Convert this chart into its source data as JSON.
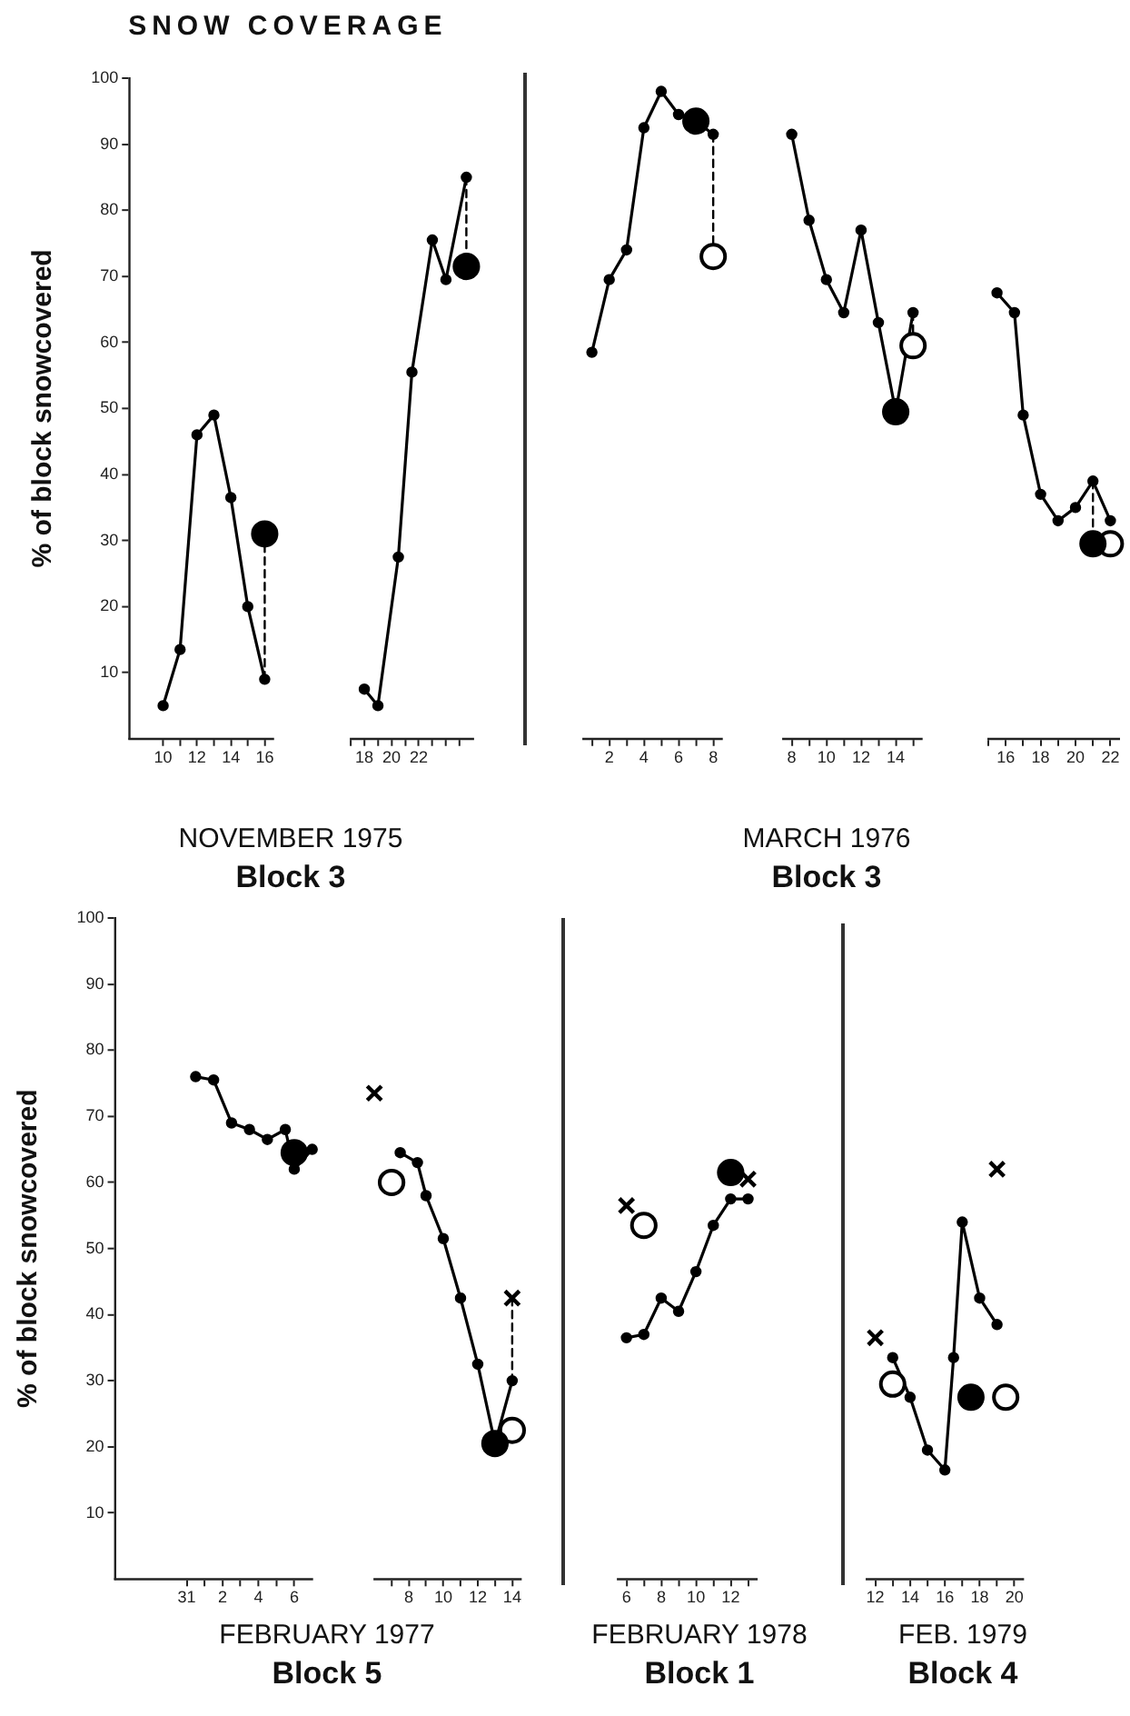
{
  "chart_data": [
    {
      "type": "line",
      "title": "SNOW COVERAGE",
      "ylabel": "% of block snowcovered",
      "xlabel": "NOVEMBER 1975\nBlock 3",
      "xlim": [
        8,
        16.5
      ],
      "ylim": [
        0,
        100
      ],
      "yticks": [
        10,
        20,
        30,
        40,
        50,
        60,
        70,
        80,
        90,
        100
      ],
      "xticks": [
        10,
        {
          "value": 11,
          "label": null
        },
        12,
        {
          "value": 13,
          "label": null
        },
        14,
        {
          "value": 15,
          "label": null
        },
        16
      ],
      "series": [
        {
          "type": "line",
          "color": "#000000",
          "marker": "circle",
          "x": [
            10,
            11,
            12,
            13,
            14,
            15,
            16
          ],
          "values": [
            5,
            13.5,
            46,
            49,
            36.5,
            20,
            9
          ]
        },
        {
          "type": "scatter",
          "color": "#000000",
          "marker": "circle",
          "x": [
            16
          ],
          "values": [
            31
          ]
        },
        {
          "type": "line",
          "color": "#000000",
          "marker": "none",
          "line_style": "dashed",
          "x": [
            16,
            16
          ],
          "values": [
            9,
            31
          ]
        }
      ]
    },
    {
      "type": "line",
      "tick_labels": "x",
      "xlim": [
        17,
        26
      ],
      "ylim": [
        0,
        100
      ],
      "xticks": [
        {
          "value": 17,
          "label": null
        },
        18,
        {
          "value": 19,
          "label": null
        },
        20,
        {
          "value": 21,
          "label": null
        },
        22,
        {
          "value": 23,
          "label": null
        },
        {
          "value": 24,
          "label": null
        },
        {
          "value": 25,
          "label": null
        }
      ],
      "series": [
        {
          "type": "line",
          "color": "#000000",
          "marker": "circle",
          "x": [
            18,
            19,
            20.5,
            21.5,
            23,
            24,
            25.5
          ],
          "values": [
            7.5,
            5,
            27.5,
            55.5,
            75.5,
            69.5,
            85
          ]
        },
        {
          "type": "scatter",
          "color": "#000000",
          "marker": "circle",
          "x": [
            25.5
          ],
          "values": [
            71.5
          ]
        },
        {
          "type": "line",
          "color": "#000000",
          "marker": "none",
          "line_style": "dashed",
          "x": [
            25.5,
            25.5
          ],
          "values": [
            85,
            71.5
          ]
        }
      ]
    },
    {
      "type": "line",
      "tick_labels": "x",
      "xlim": [
        0.5,
        8.5
      ],
      "ylim": [
        0,
        100
      ],
      "xticks": [
        {
          "value": 1,
          "label": null
        },
        2,
        {
          "value": 3,
          "label": null
        },
        4,
        {
          "value": 5,
          "label": null
        },
        6,
        {
          "value": 7,
          "label": null
        },
        8
      ],
      "series": [
        {
          "type": "line",
          "color": "#000000",
          "marker": "circle",
          "x": [
            1,
            2,
            3,
            4,
            5,
            6,
            7,
            8
          ],
          "values": [
            58.5,
            69.5,
            74,
            92.5,
            98,
            94.5,
            93.5,
            91.5
          ]
        },
        {
          "type": "scatter",
          "color": "#000000",
          "marker": "circle",
          "x": [
            7
          ],
          "values": [
            93.5
          ]
        },
        {
          "type": "scatter",
          "color": "#ffffff",
          "marker": "circle",
          "x": [
            8
          ],
          "values": [
            73
          ]
        },
        {
          "type": "line",
          "color": "#000000",
          "marker": "none",
          "line_style": "dashed",
          "x": [
            8,
            8
          ],
          "values": [
            91.5,
            73
          ]
        }
      ]
    },
    {
      "type": "line",
      "tick_labels": "x",
      "xlabel": "MARCH 1976\nBlock 3",
      "xlim": [
        7.5,
        15.5
      ],
      "ylim": [
        0,
        100
      ],
      "xticks": [
        8,
        {
          "value": 9,
          "label": null
        },
        10,
        {
          "value": 11,
          "label": null
        },
        12,
        {
          "value": 13,
          "label": null
        },
        14,
        {
          "value": 15,
          "label": null
        }
      ],
      "series": [
        {
          "type": "line",
          "color": "#000000",
          "marker": "circle",
          "x": [
            8,
            9,
            10,
            11,
            12,
            13,
            14,
            15
          ],
          "values": [
            91.5,
            78.5,
            69.5,
            64.5,
            77,
            63,
            49.5,
            64.5
          ]
        },
        {
          "type": "scatter",
          "color": "#000000",
          "marker": "circle",
          "x": [
            14
          ],
          "values": [
            49.5
          ]
        },
        {
          "type": "scatter",
          "color": "#ffffff",
          "marker": "circle",
          "x": [
            15
          ],
          "values": [
            59.5
          ]
        },
        {
          "type": "line",
          "color": "#000000",
          "marker": "none",
          "line_style": "dashed",
          "x": [
            15,
            15
          ],
          "values": [
            64.5,
            59.5
          ]
        }
      ]
    },
    {
      "type": "line",
      "tick_labels": "x",
      "xlim": [
        15,
        22.5
      ],
      "ylim": [
        0,
        100
      ],
      "xticks": [
        {
          "value": 15,
          "label": null
        },
        16,
        {
          "value": 17,
          "label": null
        },
        18,
        {
          "value": 19,
          "label": null
        },
        20,
        {
          "value": 21,
          "label": null
        },
        22
      ],
      "series": [
        {
          "type": "line",
          "color": "#000000",
          "marker": "circle",
          "x": [
            15.5,
            16.5,
            17,
            18,
            19,
            20,
            21,
            22
          ],
          "values": [
            67.5,
            64.5,
            49,
            37,
            33,
            35,
            39,
            33
          ]
        },
        {
          "type": "scatter",
          "color": "#000000",
          "marker": "circle",
          "x": [
            21
          ],
          "values": [
            29.5
          ]
        },
        {
          "type": "scatter",
          "color": "#ffffff",
          "marker": "circle",
          "x": [
            22
          ],
          "values": [
            29.5
          ]
        },
        {
          "type": "line",
          "color": "#000000",
          "marker": "none",
          "line_style": "dashed",
          "x": [
            21,
            21
          ],
          "values": [
            39,
            29.5
          ]
        }
      ]
    },
    {
      "type": "line",
      "ylabel": "% of block snowcovered",
      "xlabel": "FEBRUARY 1977\nBlock 5",
      "xlim": [
        "1977-01-27",
        "1977-02-07"
      ],
      "ylim": [
        0,
        100
      ],
      "yticks": [
        10,
        20,
        30,
        40,
        50,
        60,
        70,
        80,
        90,
        100
      ],
      "xticks": [
        {
          "value": "1977-01-31",
          "label": "31"
        },
        {
          "value": "1977-02-01",
          "label": null
        },
        {
          "value": "1977-02-02",
          "label": "2"
        },
        {
          "value": "1977-02-03",
          "label": null
        },
        {
          "value": "1977-02-04",
          "label": "4"
        },
        {
          "value": "1977-02-05",
          "label": null
        },
        {
          "value": "1977-02-06",
          "label": "6"
        }
      ],
      "series": [
        {
          "type": "line",
          "color": "#000000",
          "marker": "circle",
          "x": [
            "1977-01-31T12:00",
            "1977-02-01T12:00",
            "1977-02-02T12:00",
            "1977-02-03T12:00",
            "1977-02-04T12:00",
            "1977-02-05T12:00",
            "1977-02-06",
            "1977-02-07"
          ],
          "values": [
            76,
            75.5,
            69,
            68,
            66.5,
            68,
            62,
            65
          ]
        },
        {
          "type": "scatter",
          "color": "#000000",
          "marker": "circle",
          "x": [
            "1977-02-06"
          ],
          "values": [
            64.5
          ]
        }
      ]
    },
    {
      "type": "line",
      "tick_labels": "x",
      "xlim": [
        6,
        14.5
      ],
      "ylim": [
        0,
        100
      ],
      "xticks": [
        {
          "value": 7,
          "label": null
        },
        8,
        {
          "value": 9,
          "label": null
        },
        10,
        {
          "value": 11,
          "label": null
        },
        12,
        {
          "value": 13,
          "label": null
        },
        14
      ],
      "series": [
        {
          "type": "line",
          "color": "#000000",
          "marker": "circle",
          "x": [
            7.5,
            8.5,
            9,
            10,
            11,
            12,
            13,
            14
          ],
          "values": [
            64.5,
            63,
            58,
            51.5,
            42.5,
            32.5,
            20.5,
            30
          ]
        },
        {
          "type": "scatter",
          "color": "#000000",
          "marker": "circle",
          "x": [
            13
          ],
          "values": [
            20.5
          ]
        },
        {
          "type": "scatter",
          "color": "#ffffff",
          "marker": "circle",
          "x": [
            7,
            14
          ],
          "values": [
            60,
            22.5
          ]
        },
        {
          "type": "scatter",
          "color": "#000000",
          "marker": "cross",
          "x": [
            6,
            14
          ],
          "values": [
            73.5,
            42.5
          ]
        },
        {
          "type": "line",
          "color": "#000000",
          "marker": "none",
          "line_style": "dashed",
          "x": [
            14,
            14
          ],
          "values": [
            42.5,
            30
          ]
        }
      ]
    },
    {
      "type": "line",
      "tick_labels": "x",
      "xlabel": "FEBRUARY 1978\nBlock 1",
      "xlim": [
        5.5,
        13.5
      ],
      "ylim": [
        0,
        100
      ],
      "xticks": [
        6,
        {
          "value": 7,
          "label": null
        },
        8,
        {
          "value": 9,
          "label": null
        },
        10,
        {
          "value": 11,
          "label": null
        },
        12,
        {
          "value": 13,
          "label": null
        }
      ],
      "series": [
        {
          "type": "line",
          "color": "#000000",
          "marker": "circle",
          "x": [
            6,
            7,
            8,
            9,
            10,
            11,
            12,
            13
          ],
          "values": [
            36.5,
            37,
            42.5,
            40.5,
            46.5,
            53.5,
            57.5,
            57.5
          ]
        },
        {
          "type": "scatter",
          "color": "#000000",
          "marker": "circle",
          "x": [
            12
          ],
          "values": [
            61.5
          ]
        },
        {
          "type": "scatter",
          "color": "#ffffff",
          "marker": "circle",
          "x": [
            7
          ],
          "values": [
            53.5
          ]
        },
        {
          "type": "scatter",
          "color": "#000000",
          "marker": "cross",
          "x": [
            6,
            13
          ],
          "values": [
            56.5,
            60.5
          ]
        }
      ]
    },
    {
      "type": "line",
      "tick_labels": "x",
      "xlabel": "FEB. 1979\nBlock 4",
      "xlim": [
        11.5,
        20.5
      ],
      "ylim": [
        0,
        100
      ],
      "xticks": [
        12,
        {
          "value": 13,
          "label": null
        },
        14,
        {
          "value": 15,
          "label": null
        },
        16,
        {
          "value": 17,
          "label": null
        },
        18,
        {
          "value": 19,
          "label": null
        },
        20
      ],
      "series": [
        {
          "type": "line",
          "color": "#000000",
          "marker": "circle",
          "x": [
            13,
            14,
            15,
            16,
            16.5,
            17,
            18,
            19
          ],
          "values": [
            33.5,
            27.5,
            19.5,
            16.5,
            33.5,
            54,
            42.5,
            38.5
          ]
        },
        {
          "type": "scatter",
          "color": "#000000",
          "marker": "circle",
          "x": [
            17.5
          ],
          "values": [
            27.5
          ]
        },
        {
          "type": "scatter",
          "color": "#ffffff",
          "marker": "circle",
          "x": [
            13,
            19.5
          ],
          "values": [
            29.5,
            27.5
          ]
        },
        {
          "type": "scatter",
          "color": "#000000",
          "marker": "cross",
          "x": [
            12,
            19
          ],
          "values": [
            36.5,
            62
          ]
        }
      ]
    }
  ]
}
